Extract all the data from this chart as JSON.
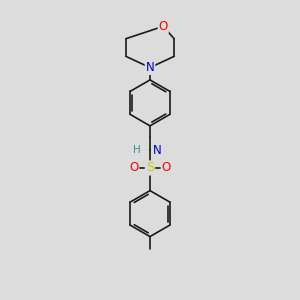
{
  "bg_color": "#dcdcdc",
  "bond_color": "#1a1a1a",
  "bond_width": 1.2,
  "atom_colors": {
    "O": "#ff0000",
    "N": "#0000cc",
    "S": "#cccc00",
    "H": "#3a9090",
    "C": "#1a1a1a"
  },
  "figsize": [
    3.0,
    3.0
  ],
  "dpi": 100,
  "xlim": [
    0,
    10
  ],
  "ylim": [
    0,
    10
  ]
}
